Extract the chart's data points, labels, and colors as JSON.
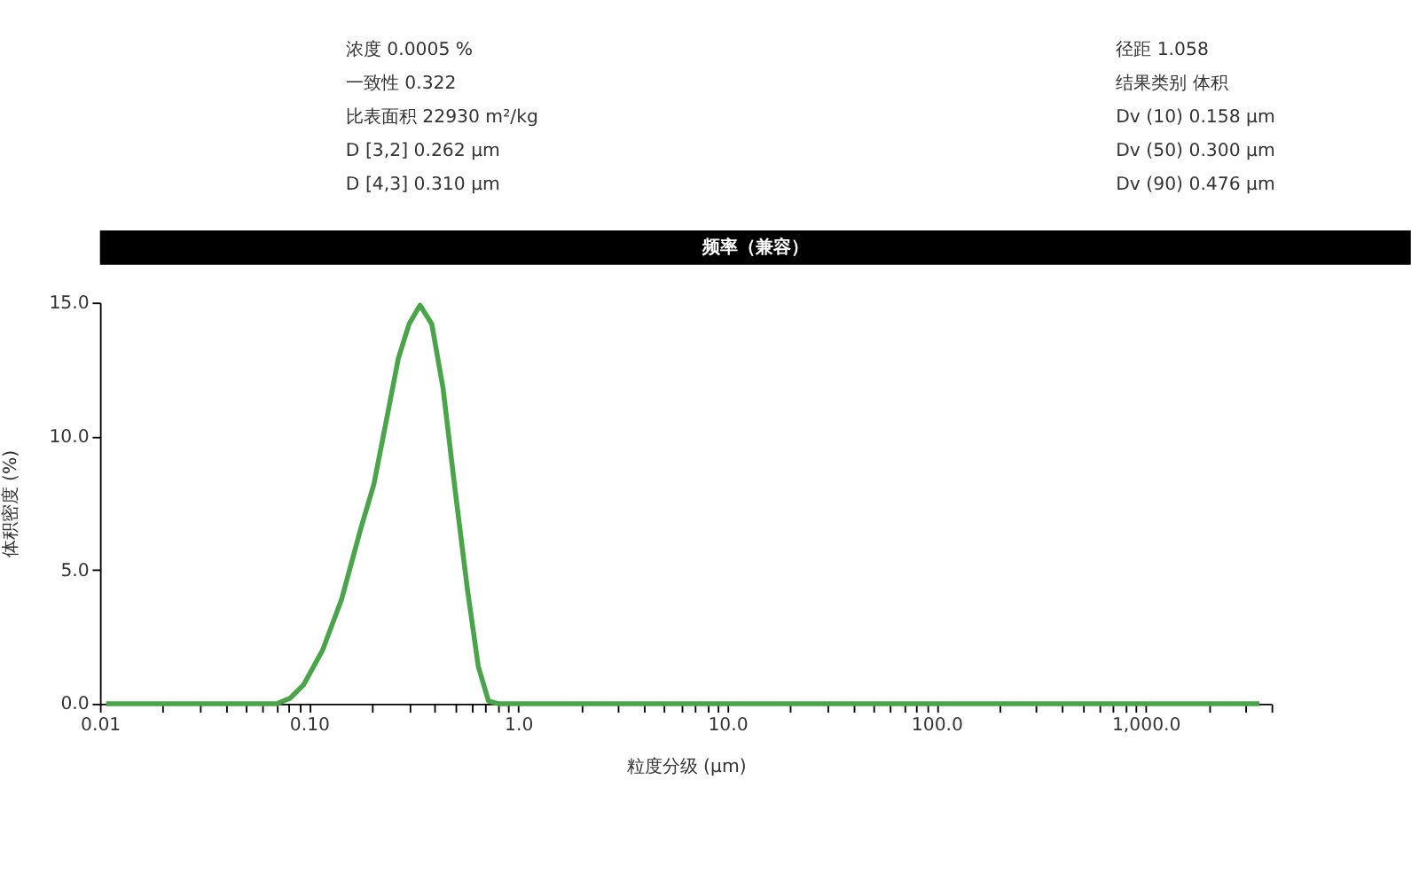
{
  "chart_data": {
    "type": "line",
    "title": "频率（兼容）",
    "xlabel": "粒度分级 (μm)",
    "ylabel": "体积密度 (%)",
    "annotations": [
      "浓度 0.0005 %",
      "一致性 0.322",
      "比表面积 22930 m²/kg",
      "D [3,2] 0.262 μm",
      "D [4,3] 0.310 μm",
      "径距 1.058",
      "结果类别 体积",
      "Dv (10) 0.158 μm",
      "Dv (50) 0.300 μm",
      "Dv (90) 0.476 μm"
    ],
    "log": "x",
    "grid": false,
    "legend": false,
    "marker": "none",
    "line_style": "solid",
    "xlim": [
      0.01,
      4000
    ],
    "ylim": [
      0,
      15
    ],
    "yticks": [
      {
        "value": 0,
        "label": "0.0"
      },
      {
        "value": 5,
        "label": "5.0"
      },
      {
        "value": 10,
        "label": "10.0"
      },
      {
        "value": 15,
        "label": "15.0"
      }
    ],
    "xticks": [
      {
        "value": 0.01,
        "label": "0.01"
      },
      {
        "value": 0.02,
        "label": null
      },
      {
        "value": 0.03,
        "label": null
      },
      {
        "value": 0.04,
        "label": null
      },
      {
        "value": 0.05,
        "label": null
      },
      {
        "value": 0.06,
        "label": null
      },
      {
        "value": 0.07,
        "label": null
      },
      {
        "value": 0.08,
        "label": null
      },
      {
        "value": 0.09,
        "label": null
      },
      {
        "value": 0.1,
        "label": "0.10"
      },
      {
        "value": 0.2,
        "label": null
      },
      {
        "value": 0.3,
        "label": null
      },
      {
        "value": 0.4,
        "label": null
      },
      {
        "value": 0.5,
        "label": null
      },
      {
        "value": 0.6,
        "label": null
      },
      {
        "value": 0.7,
        "label": null
      },
      {
        "value": 0.8,
        "label": null
      },
      {
        "value": 0.9,
        "label": null
      },
      {
        "value": 1,
        "label": "1.0"
      },
      {
        "value": 2,
        "label": null
      },
      {
        "value": 3,
        "label": null
      },
      {
        "value": 4,
        "label": null
      },
      {
        "value": 5,
        "label": null
      },
      {
        "value": 6,
        "label": null
      },
      {
        "value": 7,
        "label": null
      },
      {
        "value": 8,
        "label": null
      },
      {
        "value": 9,
        "label": null
      },
      {
        "value": 10,
        "label": "10.0"
      },
      {
        "value": 20,
        "label": null
      },
      {
        "value": 30,
        "label": null
      },
      {
        "value": 40,
        "label": null
      },
      {
        "value": 50,
        "label": null
      },
      {
        "value": 60,
        "label": null
      },
      {
        "value": 70,
        "label": null
      },
      {
        "value": 80,
        "label": null
      },
      {
        "value": 90,
        "label": null
      },
      {
        "value": 100,
        "label": "100.0"
      },
      {
        "value": 200,
        "label": null
      },
      {
        "value": 300,
        "label": null
      },
      {
        "value": 400,
        "label": null
      },
      {
        "value": 500,
        "label": null
      },
      {
        "value": 600,
        "label": null
      },
      {
        "value": 700,
        "label": null
      },
      {
        "value": 800,
        "label": null
      },
      {
        "value": 900,
        "label": null
      },
      {
        "value": 1000,
        "label": "1,000.0"
      },
      {
        "value": 2000,
        "label": null
      },
      {
        "value": 3000,
        "label": null
      },
      {
        "value": 4000,
        "label": null
      }
    ],
    "series": [
      {
        "color": "#4aa54a",
        "x": [
          0.0107,
          0.07,
          0.081,
          0.094,
          0.116,
          0.143,
          0.176,
          0.204,
          0.237,
          0.267,
          0.301,
          0.339,
          0.386,
          0.437,
          0.499,
          0.571,
          0.644,
          0.721,
          0.8,
          3500
        ],
        "values": [
          0,
          0,
          0.2,
          0.7,
          2.0,
          3.9,
          6.5,
          8.2,
          10.8,
          12.9,
          14.2,
          14.9,
          14.2,
          11.8,
          8.0,
          4.3,
          1.4,
          0.1,
          0,
          0
        ]
      }
    ]
  }
}
